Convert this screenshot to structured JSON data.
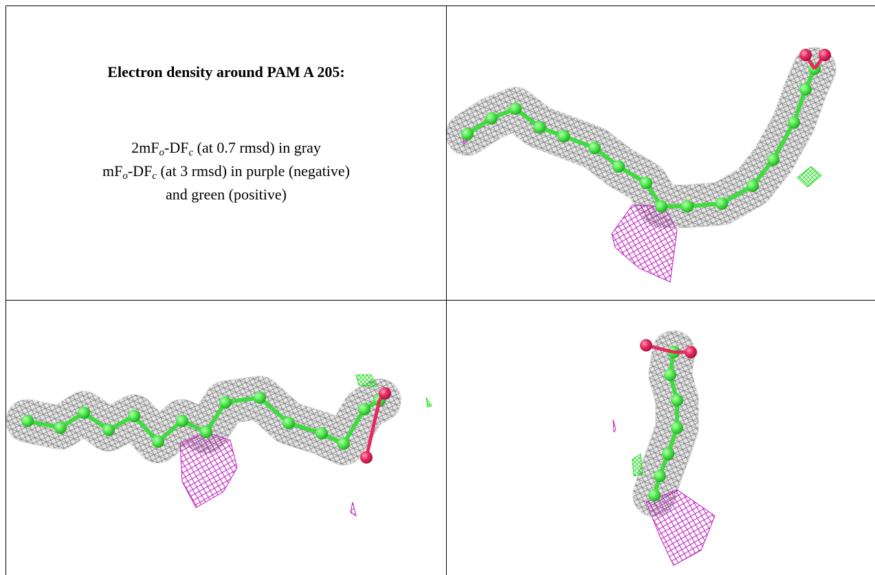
{
  "caption": {
    "title": "Electron density around PAM A 205:",
    "lines": [
      [
        "2mF",
        "o",
        "-DF",
        "c",
        " (at 0.7 rmsd) in gray"
      ],
      [
        "mF",
        "o",
        "-DF",
        "c",
        " (at 3 rmsd) in purple (negative)"
      ],
      [
        "and green (positive)"
      ]
    ]
  }
}
